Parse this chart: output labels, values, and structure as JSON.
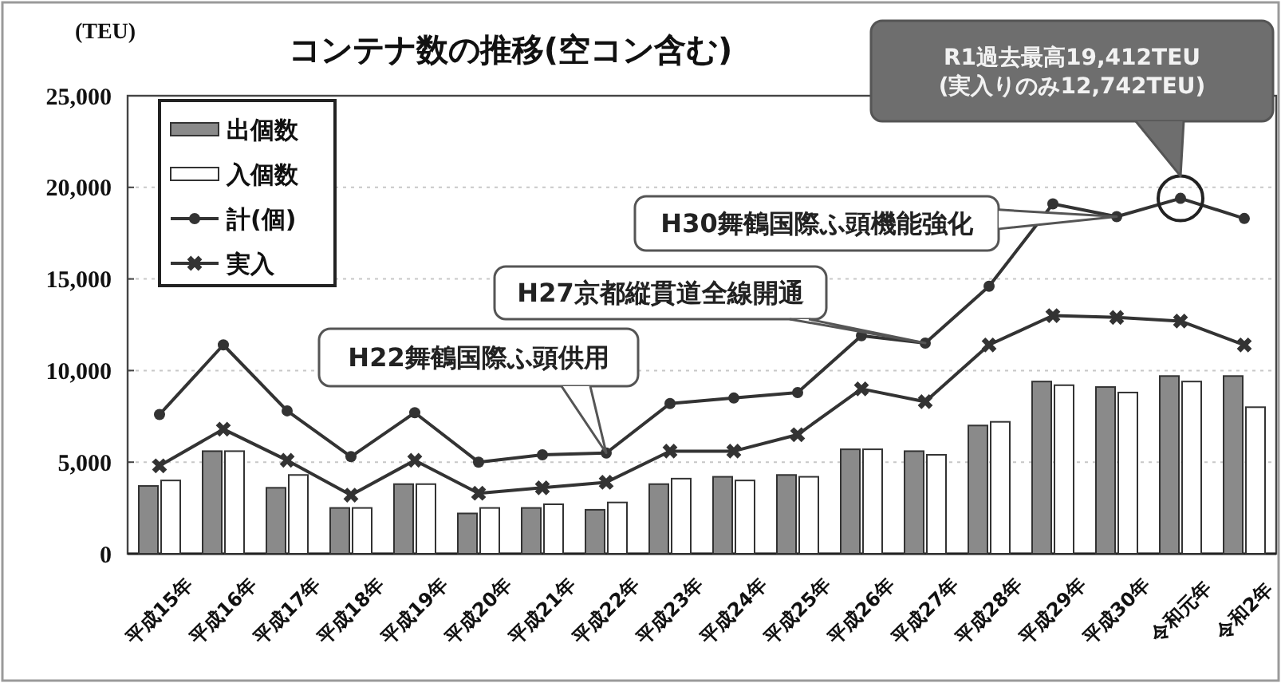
{
  "chart_data": {
    "type": "bar",
    "title": "コンテナ数の推移(空コン含む)",
    "ylabel": "(TEU)",
    "categories": [
      "平成15年",
      "平成16年",
      "平成17年",
      "平成18年",
      "平成19年",
      "平成20年",
      "平成21年",
      "平成22年",
      "平成23年",
      "平成24年",
      "平成25年",
      "平成26年",
      "平成27年",
      "平成28年",
      "平成29年",
      "平成30年",
      "令和元年",
      "令和2年"
    ],
    "series": [
      {
        "name": "出個数",
        "color": "#8a8a8a",
        "values": [
          3700,
          5600,
          3600,
          2500,
          3800,
          2200,
          2500,
          2400,
          3800,
          4200,
          4300,
          5700,
          5600,
          7000,
          9400,
          9100,
          9700,
          9700
        ]
      },
      {
        "name": "入個数",
        "color": "#ffffff",
        "values": [
          4000,
          5600,
          4300,
          2500,
          3800,
          2500,
          2700,
          2800,
          4100,
          4000,
          4200,
          5700,
          5400,
          7200,
          9200,
          8800,
          9400,
          8000
        ]
      },
      {
        "name": "計(個)",
        "type": "line",
        "color": "#333333",
        "marker": "circle",
        "values": [
          7600,
          11400,
          7800,
          5300,
          7700,
          5000,
          5400,
          5500,
          8200,
          8500,
          8800,
          11900,
          11500,
          14600,
          19100,
          18400,
          19400,
          18300
        ]
      },
      {
        "name": "実入",
        "type": "line",
        "color": "#333333",
        "marker": "cross",
        "values": [
          4800,
          6800,
          5100,
          3200,
          5100,
          3300,
          3600,
          3900,
          5600,
          5600,
          6500,
          9000,
          8300,
          11400,
          13000,
          12900,
          12700,
          11400
        ]
      }
    ],
    "ylim": [
      0,
      25000
    ],
    "yticks": [
      {
        "value": 0,
        "label": "0"
      },
      {
        "value": 5000,
        "label": "5,000"
      },
      {
        "value": 10000,
        "label": "10,000"
      },
      {
        "value": 15000,
        "label": "15,000"
      },
      {
        "value": 20000,
        "label": "20,000"
      },
      {
        "value": 25000,
        "label": "25,000"
      }
    ],
    "grid": "y",
    "legend": "top left",
    "annotations": [
      "H22舞鶴国際ふ頭供用",
      {
        "text": "H27京都縦貫道全線開通",
        "x": "平成27年",
        "y": 11500
      },
      {
        "text": "H30舞鶴国際ふ頭機能強化",
        "x": "平成30年",
        "y": 18400
      },
      "R1過去最高19,412TEU\n(実入りのみ12,742TEU)"
    ]
  }
}
